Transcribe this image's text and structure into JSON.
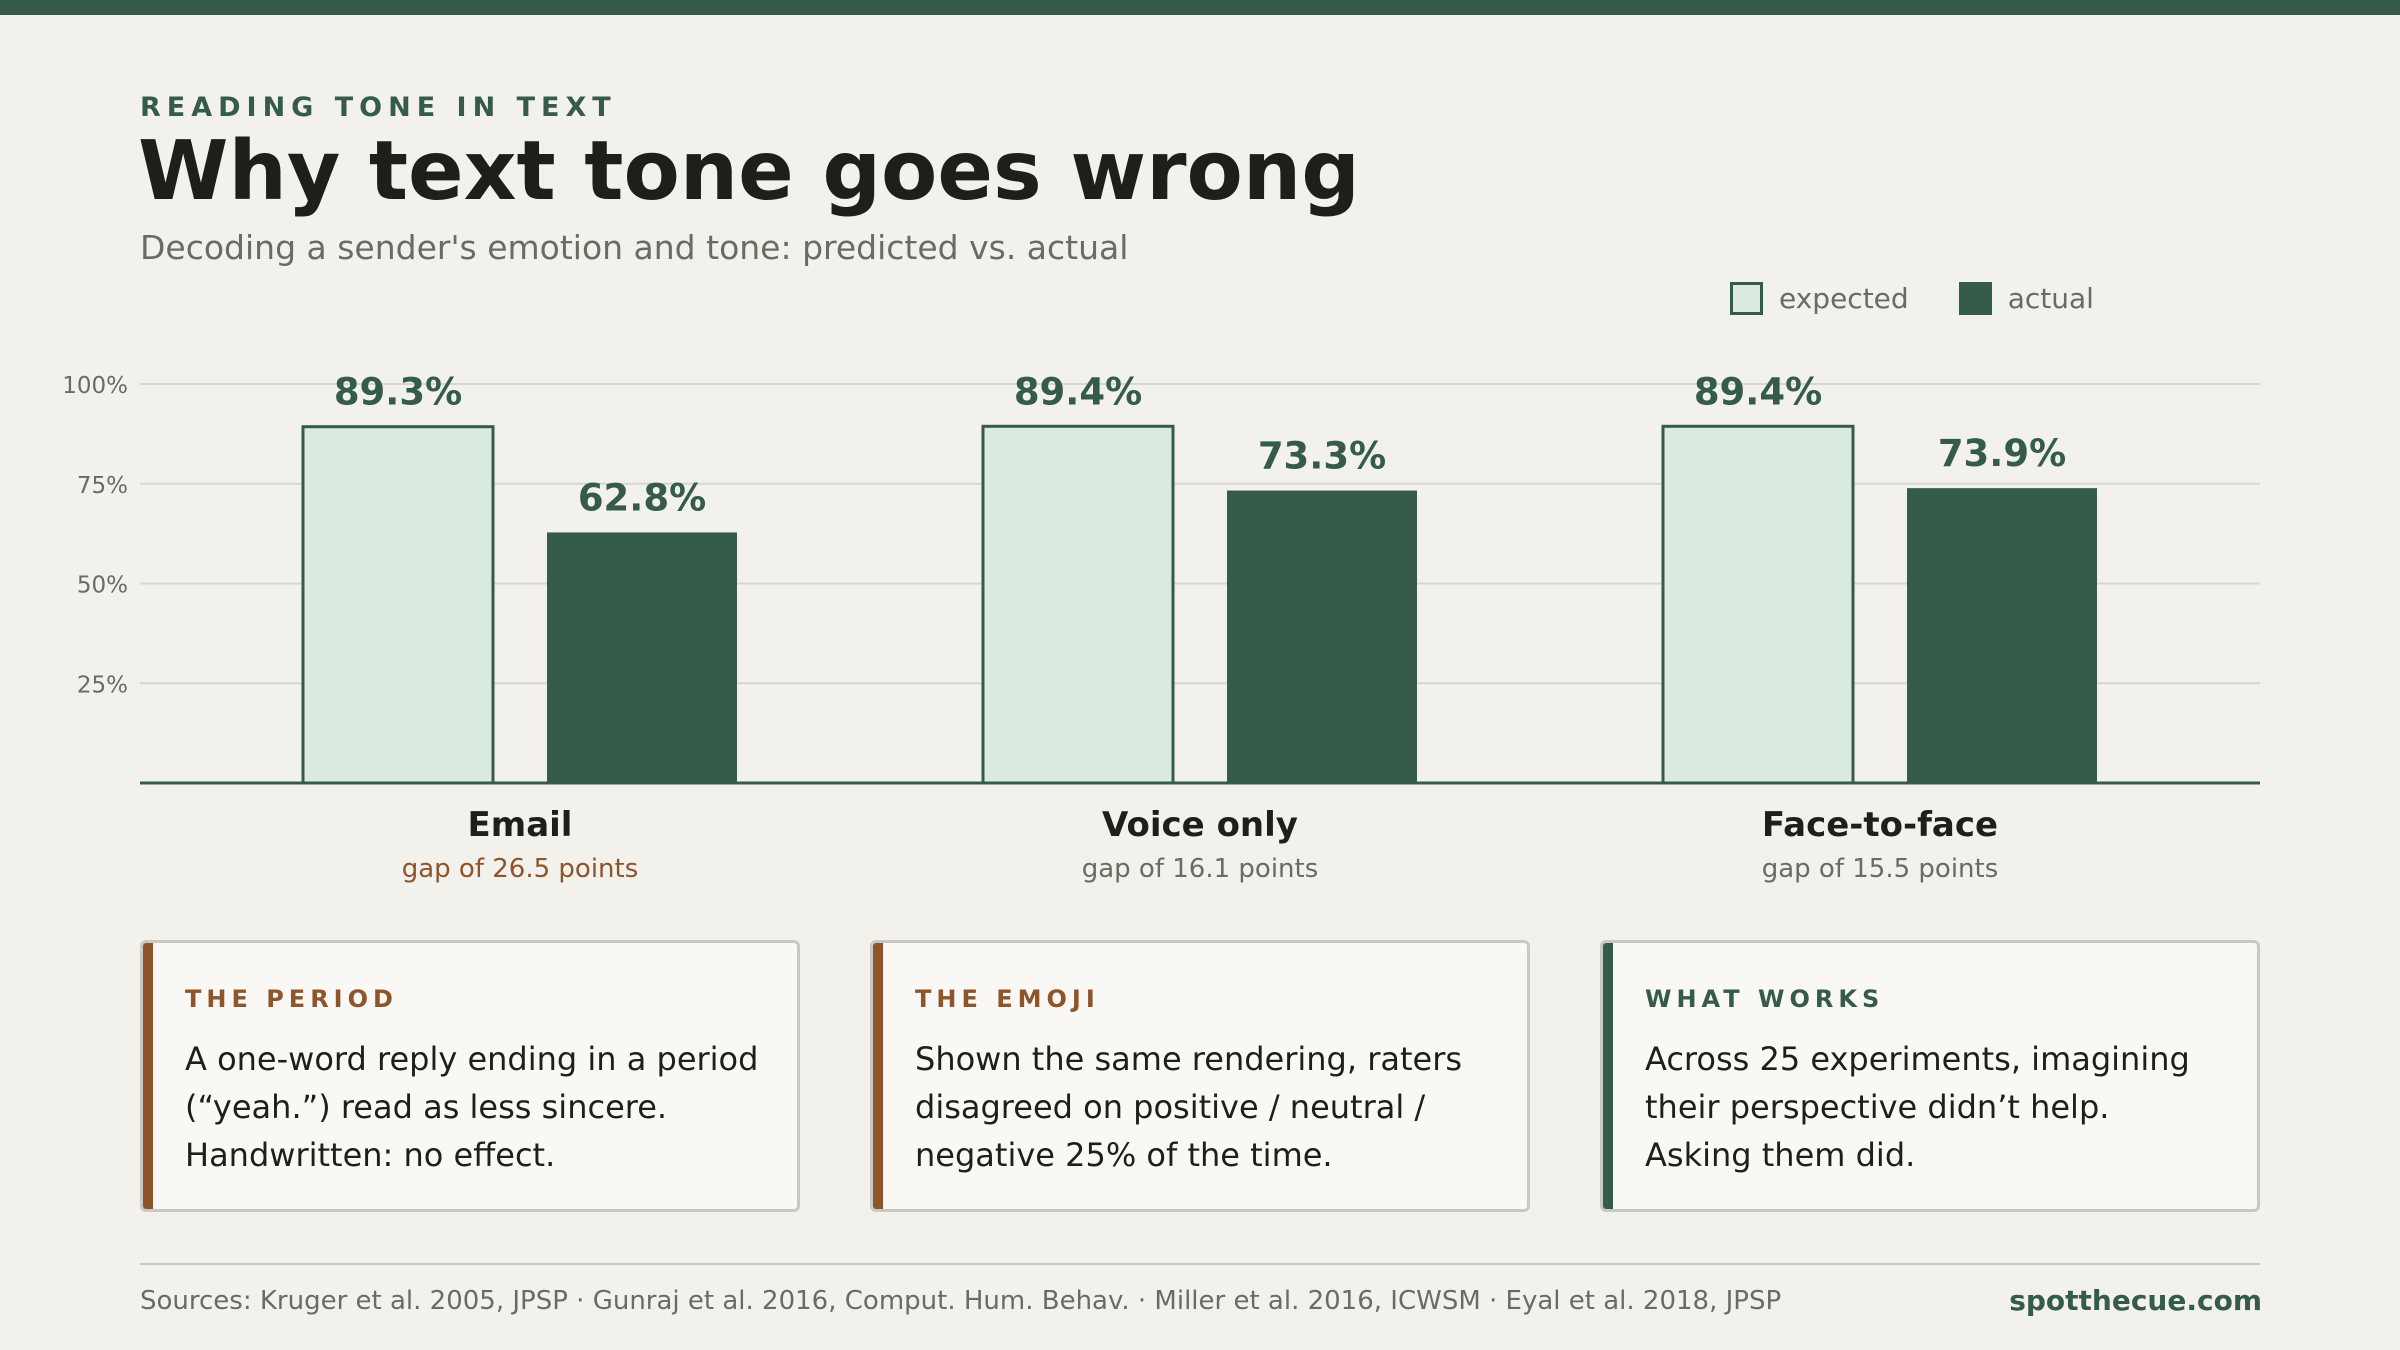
{
  "header": {
    "kicker": "READING TONE IN TEXT",
    "title": "Why text tone goes wrong",
    "subtitle": "Decoding a sender's emotion and tone: predicted vs. actual"
  },
  "legend": {
    "expected": "expected",
    "actual": "actual"
  },
  "colors": {
    "accent": "#355b4b",
    "expected_fill": "#dbeae0",
    "highlight": "#8e542a",
    "muted": "#6b6a63",
    "background": "#f3f1ec"
  },
  "chart_data": {
    "type": "bar",
    "categories": [
      "Email",
      "Voice only",
      "Face-to-face"
    ],
    "category_notes": [
      "gap of 26.5 points",
      "gap of 16.1 points",
      "gap of 15.5 points"
    ],
    "highlighted_category": "Email",
    "series": [
      {
        "name": "expected",
        "values": [
          89.3,
          89.4,
          89.4
        ]
      },
      {
        "name": "actual",
        "values": [
          62.8,
          73.3,
          73.9
        ]
      }
    ],
    "value_labels": {
      "expected": [
        "89.3%",
        "89.4%",
        "89.4%"
      ],
      "actual": [
        "62.8%",
        "73.3%",
        "73.9%"
      ]
    },
    "yticks": [
      25,
      50,
      75,
      100
    ],
    "ytick_labels": [
      "25%",
      "50%",
      "75%",
      "100%"
    ],
    "ylim": [
      0,
      100
    ],
    "grid": true,
    "legend_position": "top-right"
  },
  "cards": [
    {
      "kicker": "THE PERIOD",
      "body": "A one-word reply ending in a period (“yeah.”) read as less sincere. Handwritten: no effect.",
      "accent": "#8e542a"
    },
    {
      "kicker": "THE EMOJI",
      "body": "Shown the same rendering, raters disagreed on positive / neutral / negative 25% of the time.",
      "accent": "#8e542a"
    },
    {
      "kicker": "WHAT WORKS",
      "body": "Across 25 experiments, imagining their perspective didn’t help. Asking them did.",
      "accent": "#355b4b"
    }
  ],
  "footer": {
    "sources": "Sources: Kruger et al. 2005, JPSP · Gunraj et al. 2016, Comput. Hum. Behav. · Miller et al. 2016, ICWSM · Eyal et al. 2018, JPSP",
    "brand": "spotthecue.com"
  }
}
